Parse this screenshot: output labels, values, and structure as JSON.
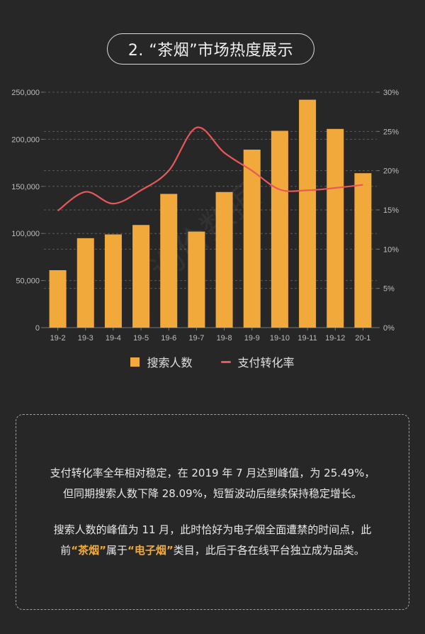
{
  "header": {
    "title": "2. “茶烟”市场热度展示"
  },
  "colors": {
    "bar": "#f0a93a",
    "line": "#e8585a",
    "background": "#272727",
    "highlight": "#f0a93a"
  },
  "watermark": "询价数据",
  "chart_data": {
    "type": "bar",
    "title": "",
    "categories": [
      "19-2",
      "19-3",
      "19-4",
      "19-5",
      "19-6",
      "19-7",
      "19-8",
      "19-9",
      "19-10",
      "19-11",
      "19-12",
      "20-1"
    ],
    "series": [
      {
        "name": "搜索人数",
        "type": "bar",
        "axis": "left",
        "values": [
          61000,
          95000,
          99000,
          109000,
          142000,
          102000,
          144000,
          189000,
          209000,
          242000,
          211000,
          164000
        ]
      },
      {
        "name": "支付转化率",
        "type": "line",
        "axis": "right",
        "unit": "%",
        "values": [
          14.9,
          17.3,
          15.8,
          17.5,
          20.0,
          25.49,
          22.3,
          20.0,
          17.6,
          17.5,
          17.8,
          18.2
        ]
      }
    ],
    "left_axis": {
      "ticks": [
        "0",
        "50,000",
        "100,000",
        "150,000",
        "200,000",
        "250,000"
      ],
      "ylim": [
        0,
        250000
      ]
    },
    "right_axis": {
      "ticks": [
        "0%",
        "5%",
        "10%",
        "15%",
        "20%",
        "25%",
        "30%"
      ],
      "ylim": [
        0,
        30
      ]
    },
    "xlabel": "",
    "ylabel": "",
    "grid": true,
    "legend_position": "bottom"
  },
  "legend": {
    "bar_label": "搜索人数",
    "line_label": "支付转化率"
  },
  "note": {
    "p1_line1": "支付转化率全年相对稳定，在 2019 年 7 月达到峰值，为 25.49%，",
    "p1_line2": "但同期搜索人数下降 28.09%，短暂波动后继续保持稳定增长。",
    "p2_line1": "搜索人数的峰值为 11 月，此时恰好为电子烟全面遭禁的时间点，此",
    "p2_pre": "前",
    "p2_hl1": "“茶烟”",
    "p2_mid": "属于",
    "p2_hl2": "“电子烟”",
    "p2_post": "类目，此后于各在线平台独立成为品类。"
  }
}
